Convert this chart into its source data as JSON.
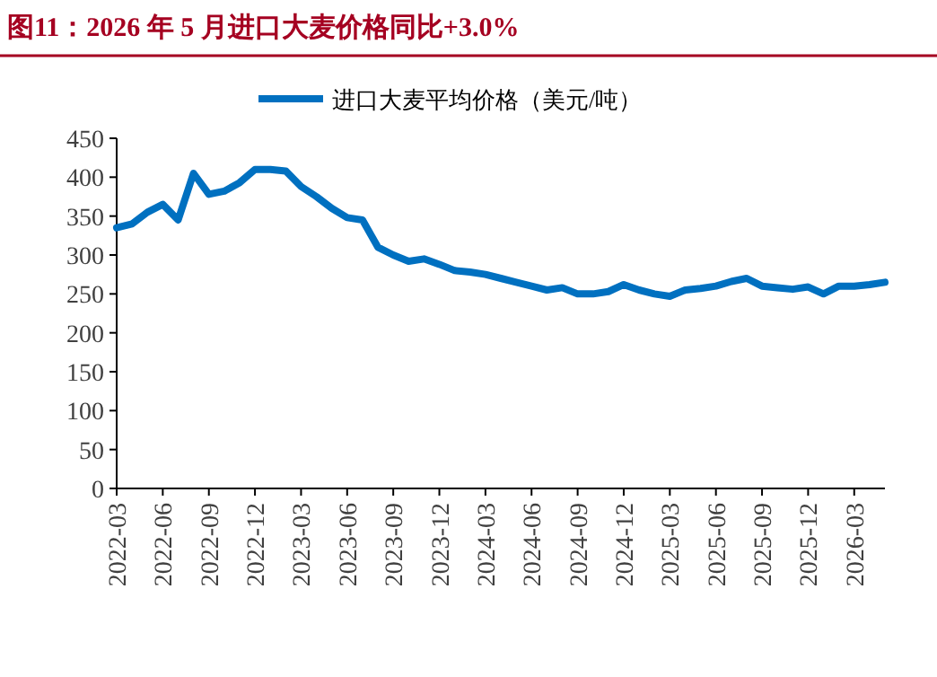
{
  "chart_data": {
    "type": "line",
    "title": "图11：2026 年 5 月进口大麦价格同比+3.0%",
    "categories": [
      "2022-03",
      null,
      null,
      "2022-06",
      null,
      null,
      "2022-09",
      null,
      null,
      "2022-12",
      null,
      null,
      "2023-03",
      null,
      null,
      "2023-06",
      null,
      null,
      "2023-09",
      null,
      null,
      "2023-12",
      null,
      null,
      "2024-03",
      null,
      null,
      "2024-06",
      null,
      null,
      "2024-09",
      null,
      null,
      "2024-12",
      null,
      null,
      "2025-03",
      null,
      null,
      "2025-06",
      null,
      null,
      "2025-09",
      null,
      null,
      "2025-12",
      null,
      null,
      "2026-03",
      null,
      null
    ],
    "series": [
      {
        "name": "进口大麦平均价格（美元/吨）",
        "color": "#0070c0",
        "values": [
          335,
          340,
          355,
          365,
          345,
          405,
          378,
          382,
          393,
          410,
          410,
          408,
          388,
          375,
          360,
          348,
          345,
          310,
          300,
          292,
          295,
          288,
          280,
          278,
          275,
          270,
          265,
          260,
          255,
          258,
          250,
          250,
          253,
          262,
          255,
          250,
          247,
          255,
          257,
          260,
          266,
          270,
          260,
          258,
          256,
          259,
          250,
          260,
          260,
          262,
          265
        ]
      }
    ],
    "ylim": [
      0,
      450
    ],
    "yticks": [
      0,
      50,
      100,
      150,
      200,
      250,
      300,
      350,
      400,
      450
    ],
    "grid": false,
    "legend": "top",
    "line_style": "solid",
    "marker": "none"
  }
}
